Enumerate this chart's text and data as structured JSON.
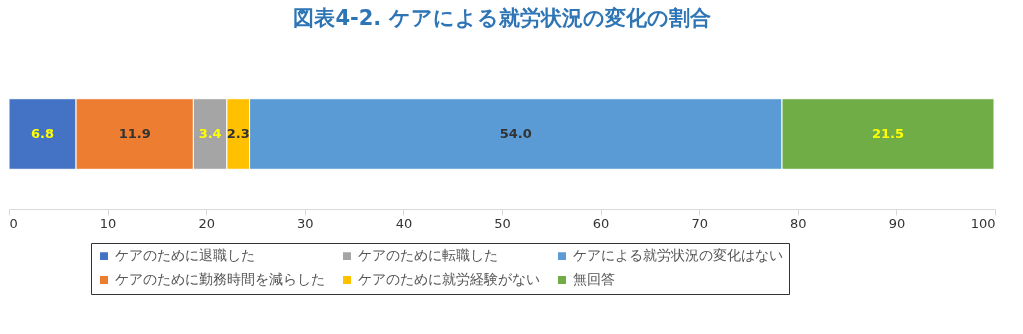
{
  "chart_data": {
    "type": "bar",
    "orientation": "horizontal",
    "stacked": true,
    "title": "図表4-2. ケアによる就労状況の変化の割合",
    "categories": [
      null
    ],
    "series": [
      {
        "name": "ケアのために退職した",
        "color": "#4472c4",
        "values": [
          6.8
        ],
        "value_labels": [
          "6.8"
        ]
      },
      {
        "name": "ケアのために勤務時間を減らした",
        "color": "#ed7d31",
        "values": [
          11.9
        ],
        "value_labels": [
          "11.9"
        ]
      },
      {
        "name": "ケアのために転職した",
        "color": "#a5a5a5",
        "values": [
          3.4
        ],
        "value_labels": [
          "3.4"
        ]
      },
      {
        "name": "ケアのために就労経験がない",
        "color": "#ffc000",
        "values": [
          2.3
        ],
        "value_labels": [
          "2.3"
        ]
      },
      {
        "name": "ケアによる就労状況の変化はない",
        "color": "#5b9bd5",
        "values": [
          54.0
        ],
        "value_labels": [
          "54.0"
        ]
      },
      {
        "name": "無回答",
        "color": "#70ad47",
        "values": [
          21.5
        ],
        "value_labels": [
          "21.5"
        ]
      }
    ],
    "xlim": [
      0,
      100
    ],
    "xticks": [
      0,
      10,
      20,
      30,
      40,
      50,
      60,
      70,
      80,
      90,
      100
    ],
    "legend": "bottom",
    "grid": false
  }
}
